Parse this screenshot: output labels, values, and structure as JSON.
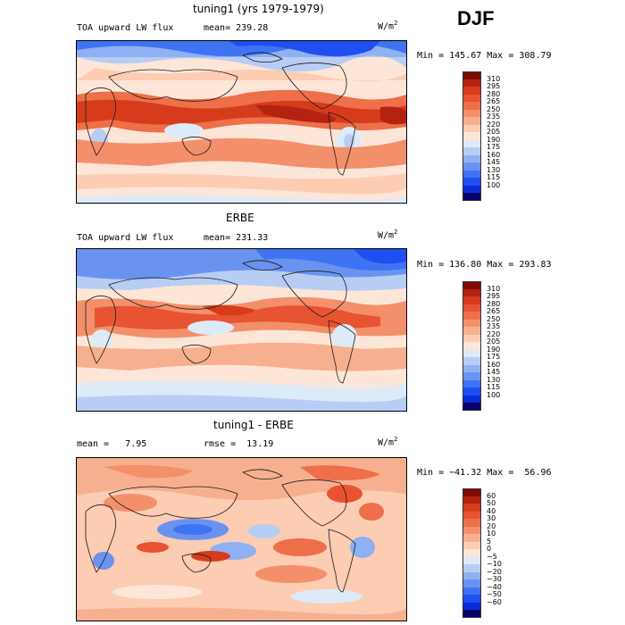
{
  "season": "DJF",
  "colors": {
    "lw_scale": [
      "#08006e",
      "#0a2bd6",
      "#1f4ff0",
      "#3e73f3",
      "#6a93f0",
      "#8fb0f2",
      "#b7cdf4",
      "#ddeaf7",
      "#fde6d8",
      "#fcccb3",
      "#f7b08f",
      "#f3906b",
      "#ee6f49",
      "#e85332",
      "#d63c1c",
      "#b42212",
      "#7f0b05"
    ],
    "diff_scale": [
      "#08006e",
      "#0a2bd6",
      "#1f4ff0",
      "#3e73f3",
      "#6a93f0",
      "#8fb0f2",
      "#b7cdf4",
      "#ddeaf7",
      "#fde6d8",
      "#fcccb3",
      "#f7b08f",
      "#f3906b",
      "#ee6f49",
      "#e85332",
      "#d63c1c",
      "#b42212",
      "#7f0b05"
    ],
    "land_outline": "#1a1a1a"
  },
  "panels": [
    {
      "title": "tuning1 (yrs 1979-1979)",
      "left_label": "TOA upward LW flux",
      "mean_label": "mean= 239.28",
      "units": "W/m",
      "units_exp": "2",
      "minmax": "Min = 145.67 Max = 308.79",
      "ticks": [
        "310",
        "295",
        "280",
        "265",
        "250",
        "235",
        "220",
        "205",
        "190",
        "175",
        "160",
        "145",
        "130",
        "115",
        "100"
      ]
    },
    {
      "title": "ERBE",
      "left_label": "TOA upward LW flux",
      "mean_label": "mean= 231.33",
      "units": "W/m",
      "units_exp": "2",
      "minmax": "Min = 136.80 Max = 293.83",
      "ticks": [
        "310",
        "295",
        "280",
        "265",
        "250",
        "235",
        "220",
        "205",
        "190",
        "175",
        "160",
        "145",
        "130",
        "115",
        "100"
      ]
    },
    {
      "title": "tuning1 - ERBE",
      "left_label": "mean =   7.95",
      "mean_label": "rmse =  13.19",
      "units": "W/m",
      "units_exp": "2",
      "minmax": "Min = −41.32 Max =  56.96",
      "ticks": [
        "60",
        "50",
        "40",
        "30",
        "20",
        "10",
        "5",
        "0",
        "−5",
        "−10",
        "−20",
        "−30",
        "−40",
        "−50",
        "−60"
      ]
    }
  ]
}
